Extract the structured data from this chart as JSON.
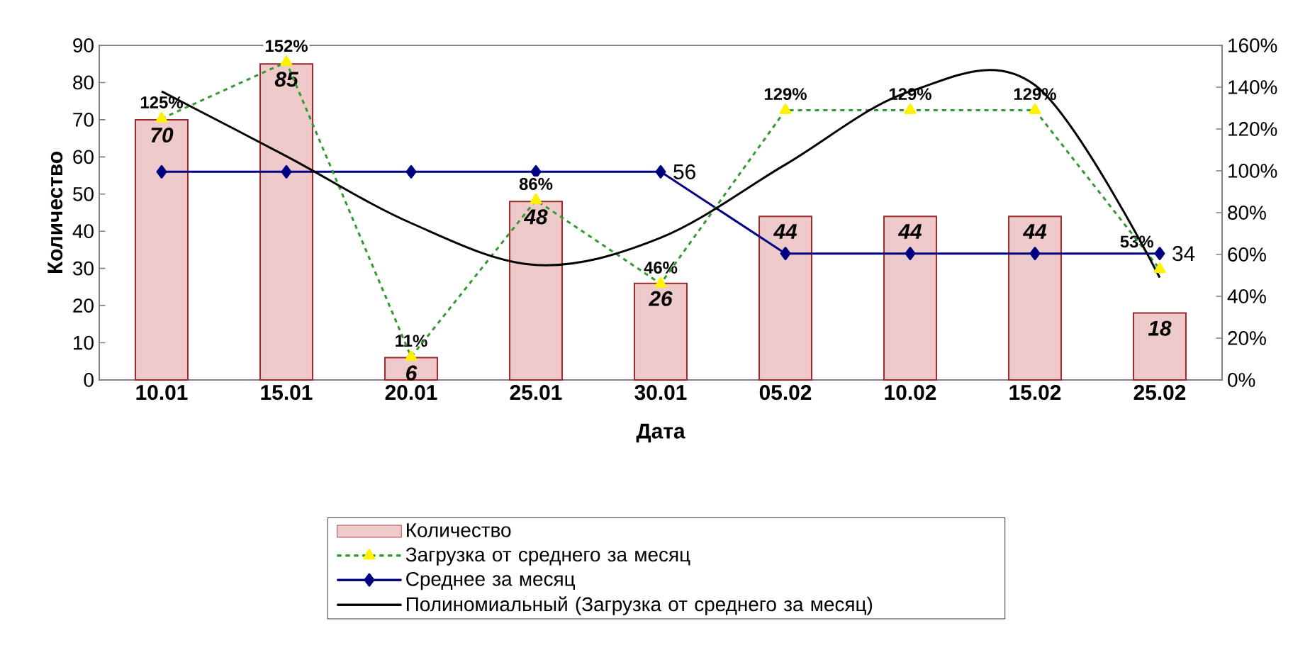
{
  "chart_data": {
    "type": "bar",
    "xlabel": "Дата",
    "ylabel": "Количество",
    "categories": [
      "10.01",
      "15.01",
      "20.01",
      "25.01",
      "30.01",
      "05.02",
      "10.02",
      "15.02",
      "25.02"
    ],
    "series": [
      {
        "name": "Количество",
        "axis": "y",
        "color": "#eecaca",
        "values": [
          70,
          85,
          6,
          48,
          26,
          44,
          44,
          44,
          18
        ],
        "value_labels": [
          "70",
          "85",
          "6",
          "48",
          "26",
          "44",
          "44",
          "44",
          "18"
        ]
      },
      {
        "name": "Загрузка от среднего за месяц",
        "type": "line",
        "axis": "y2",
        "color": "#339933",
        "marker": "triangle",
        "line_style": "dashed",
        "values": [
          125,
          152,
          11,
          86,
          46,
          129,
          129,
          129,
          53
        ],
        "value_labels": [
          "125%",
          "152%",
          "11%",
          "86%",
          "46%",
          "129%",
          "129%",
          "129%",
          "53%"
        ]
      },
      {
        "name": "Среднее за месяц",
        "type": "line",
        "axis": "y",
        "color": "#000080",
        "marker": "diamond",
        "line_style": "solid",
        "values": [
          56,
          56,
          56,
          56,
          56,
          34,
          34,
          34,
          34
        ],
        "value_labels": [
          null,
          null,
          null,
          null,
          "56",
          null,
          null,
          null,
          "34"
        ]
      },
      {
        "name": "Полиномиальный (Загрузка от среднего за месяц)",
        "type": "line",
        "axis": "y2",
        "color": "#000000",
        "marker": "none",
        "line_style": "solid",
        "values": [
          138,
          107,
          75,
          55,
          68,
          103,
          138,
          141,
          49
        ]
      }
    ],
    "ylim": [
      0,
      90
    ],
    "yticks": [
      0,
      10,
      20,
      30,
      40,
      50,
      60,
      70,
      80,
      90
    ],
    "y2lim": [
      0,
      160
    ],
    "y2ticks": [
      {
        "value": 0,
        "label": "0%"
      },
      {
        "value": 20,
        "label": "20%"
      },
      {
        "value": 40,
        "label": "40%"
      },
      {
        "value": 60,
        "label": "60%"
      },
      {
        "value": 80,
        "label": "80%"
      },
      {
        "value": 100,
        "label": "100%"
      },
      {
        "value": 120,
        "label": "120%"
      },
      {
        "value": 140,
        "label": "140%"
      },
      {
        "value": 160,
        "label": "160%"
      }
    ],
    "grid": false,
    "legend": "bottom"
  }
}
